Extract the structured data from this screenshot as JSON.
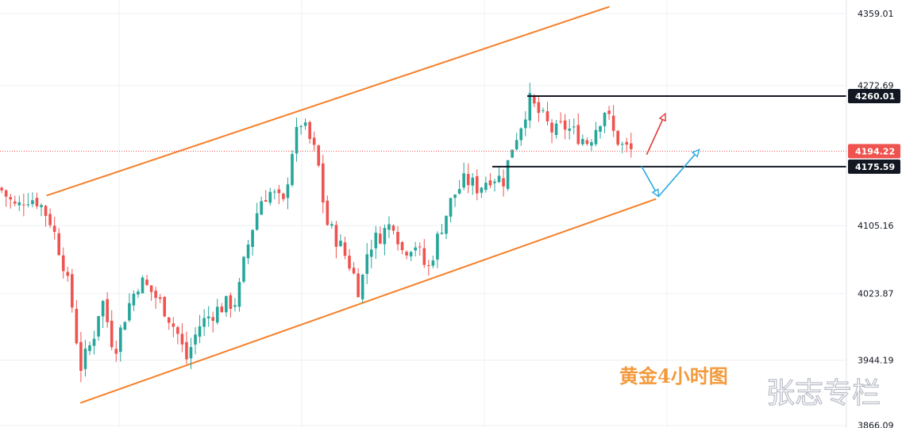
{
  "chart_data": {
    "type": "candlestick",
    "title": "黄金4小时图",
    "watermark": "张志专栏",
    "y_axis": {
      "ticks": [
        3866.09,
        3944.19,
        4023.87,
        4105.16,
        4272.69,
        4359.01
      ],
      "ylim": [
        3863,
        4375
      ]
    },
    "price_badges": [
      {
        "value": "4260.01",
        "kind": "level"
      },
      {
        "value": "4194.22",
        "kind": "current"
      },
      {
        "value": "4175.59",
        "kind": "level"
      }
    ],
    "horizontal_levels": [
      4260.01,
      4175.59
    ],
    "current_price": 4194.22,
    "channel": {
      "upper": [
        [
          0.055,
          4141
        ],
        [
          0.72,
          4367
        ]
      ],
      "lower": [
        [
          0.095,
          3893
        ],
        [
          0.775,
          4137
        ]
      ]
    },
    "close_path": [
      [
        0.0,
        4150
      ],
      [
        0.02,
        4125
      ],
      [
        0.03,
        4140
      ],
      [
        0.045,
        4135
      ],
      [
        0.06,
        4110
      ],
      [
        0.075,
        4060
      ],
      [
        0.085,
        4010
      ],
      [
        0.095,
        3935
      ],
      [
        0.11,
        3970
      ],
      [
        0.12,
        4020
      ],
      [
        0.135,
        3955
      ],
      [
        0.15,
        4005
      ],
      [
        0.165,
        4040
      ],
      [
        0.18,
        4025
      ],
      [
        0.195,
        4005
      ],
      [
        0.21,
        3975
      ],
      [
        0.22,
        3945
      ],
      [
        0.235,
        3985
      ],
      [
        0.25,
        4000
      ],
      [
        0.265,
        4010
      ],
      [
        0.28,
        4015
      ],
      [
        0.29,
        4070
      ],
      [
        0.3,
        4110
      ],
      [
        0.31,
        4140
      ],
      [
        0.32,
        4145
      ],
      [
        0.335,
        4130
      ],
      [
        0.345,
        4195
      ],
      [
        0.355,
        4230
      ],
      [
        0.365,
        4210
      ],
      [
        0.375,
        4185
      ],
      [
        0.385,
        4110
      ],
      [
        0.4,
        4085
      ],
      [
        0.415,
        4055
      ],
      [
        0.425,
        4025
      ],
      [
        0.435,
        4080
      ],
      [
        0.45,
        4095
      ],
      [
        0.465,
        4110
      ],
      [
        0.475,
        4075
      ],
      [
        0.49,
        4085
      ],
      [
        0.505,
        4050
      ],
      [
        0.52,
        4100
      ],
      [
        0.535,
        4140
      ],
      [
        0.55,
        4160
      ],
      [
        0.565,
        4150
      ],
      [
        0.58,
        4165
      ],
      [
        0.595,
        4160
      ],
      [
        0.605,
        4200
      ],
      [
        0.615,
        4225
      ],
      [
        0.625,
        4255
      ],
      [
        0.64,
        4235
      ],
      [
        0.655,
        4215
      ],
      [
        0.665,
        4225
      ],
      [
        0.68,
        4215
      ],
      [
        0.695,
        4205
      ],
      [
        0.705,
        4225
      ],
      [
        0.715,
        4245
      ],
      [
        0.725,
        4215
      ],
      [
        0.735,
        4200
      ],
      [
        0.745,
        4195
      ],
      [
        0.75,
        4194
      ]
    ],
    "projection_arrows": [
      {
        "color": "#e03a3a",
        "points": [
          [
            0.764,
            4190
          ],
          [
            0.786,
            4239
          ]
        ]
      },
      {
        "color": "#29a9df",
        "points": [
          [
            0.758,
            4176
          ],
          [
            0.778,
            4140
          ],
          [
            0.826,
            4196
          ]
        ]
      }
    ],
    "colors": {
      "up": "#26a69a",
      "down": "#ef5350",
      "channel": "#f5802a",
      "level": "#131722",
      "current_badge": "#ef5350",
      "level_badge": "#131722",
      "grid": "#eef0f4"
    }
  }
}
